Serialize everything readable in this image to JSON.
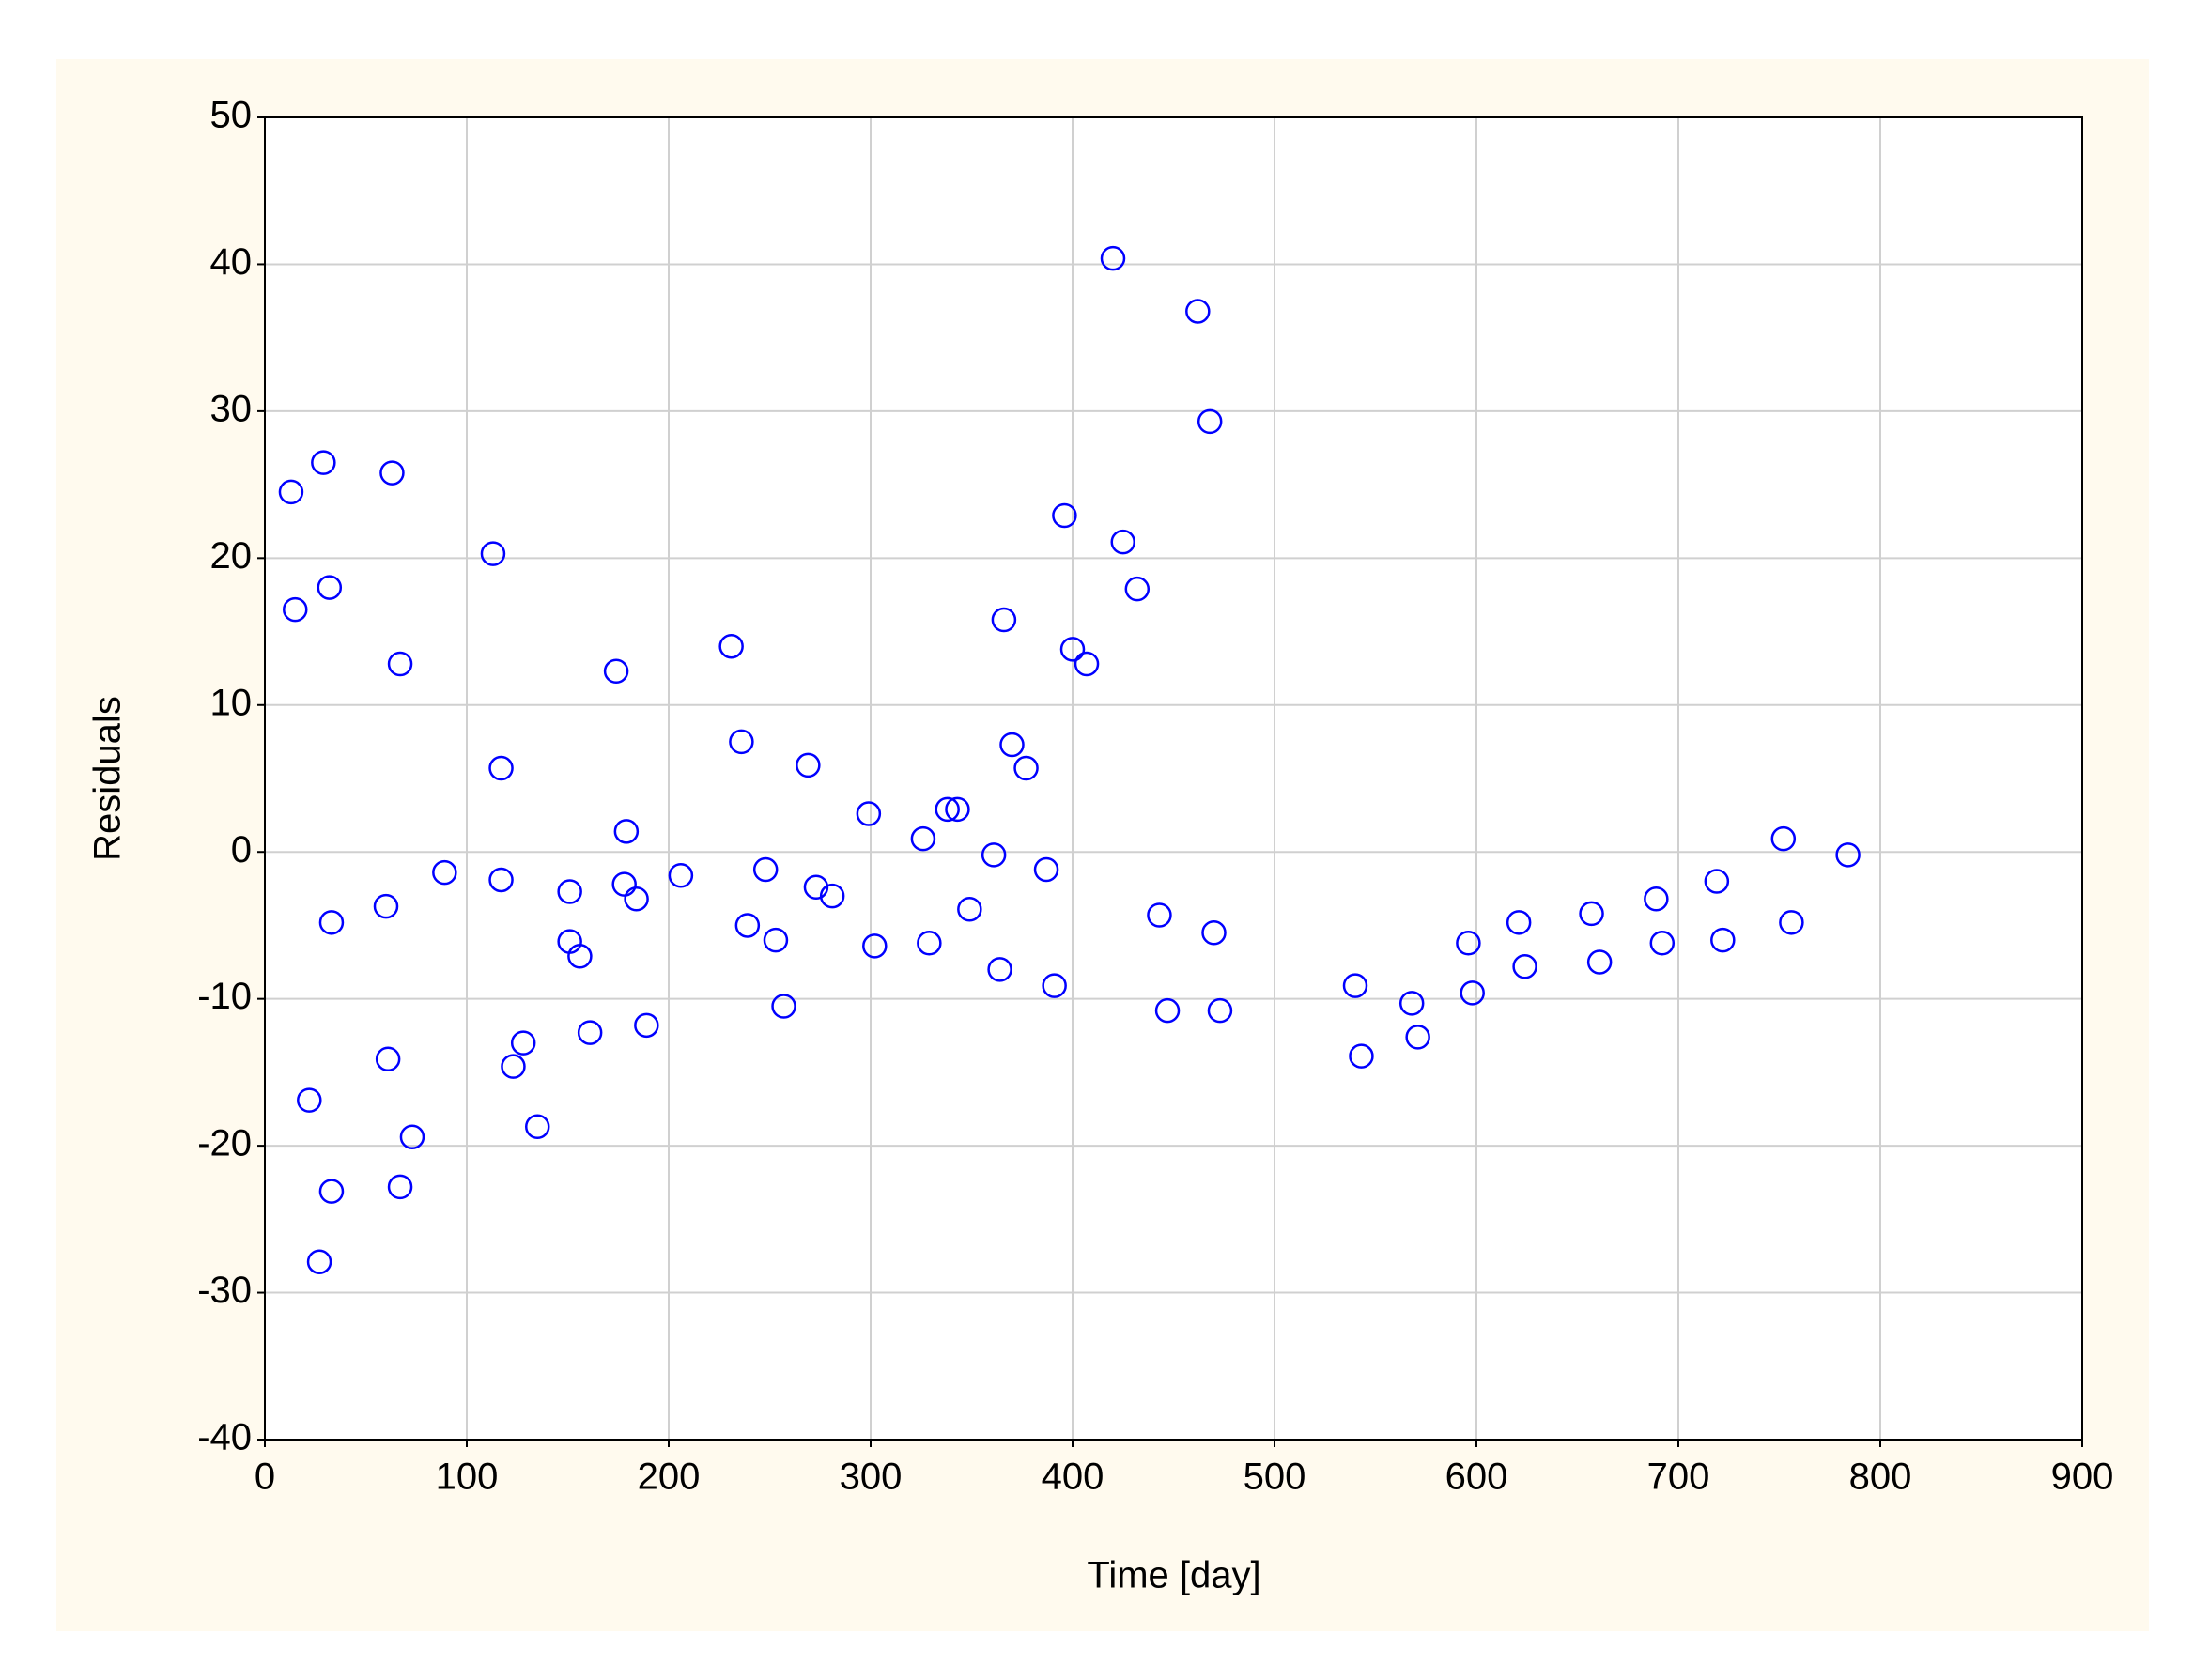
{
  "chart_data": {
    "type": "scatter",
    "xlabel": "Time [day]",
    "ylabel": "Residuals",
    "color": "#0000ff",
    "grid": true,
    "xlim": [
      0,
      900
    ],
    "xticks": [
      0,
      100,
      200,
      300,
      400,
      500,
      600,
      700,
      800,
      900
    ],
    "ylim": [
      -40,
      50
    ],
    "yticks": [
      -40,
      -30,
      -20,
      -10,
      0,
      10,
      20,
      30,
      40,
      50
    ],
    "x": [
      13,
      15,
      29,
      32,
      33,
      22,
      33,
      27,
      63,
      67,
      60,
      61,
      73,
      67,
      89,
      113,
      117,
      117,
      123,
      128,
      135,
      151,
      151,
      156,
      161,
      174,
      179,
      178,
      184,
      189,
      206,
      231,
      236,
      239,
      248,
      253,
      257,
      269,
      273,
      281,
      299,
      302,
      326,
      329,
      338,
      343,
      349,
      361,
      364,
      366,
      370,
      377,
      387,
      391,
      396,
      400,
      407,
      420,
      425,
      432,
      443,
      447,
      462,
      468,
      470,
      473,
      540,
      543,
      568,
      571,
      596,
      598,
      621,
      624,
      657,
      661,
      689,
      692,
      719,
      722,
      752,
      756,
      784
    ],
    "values": [
      24.5,
      16.5,
      26.5,
      18,
      -4.8,
      -16.9,
      -23.1,
      -27.9,
      25.8,
      12.8,
      -3.7,
      -14.1,
      -19.4,
      -22.8,
      -1.4,
      20.3,
      5.7,
      -1.9,
      -14.6,
      -13,
      -18.7,
      -2.7,
      -6.1,
      -7.1,
      -12.3,
      12.3,
      1.4,
      -2.2,
      -3.2,
      -11.8,
      -1.6,
      14,
      7.5,
      -5,
      -1.2,
      -6,
      -10.5,
      5.9,
      -2.4,
      -3,
      2.6,
      -6.4,
      0.9,
      -6.2,
      2.9,
      2.9,
      -3.9,
      -0.2,
      -8,
      15.8,
      7.3,
      5.7,
      -1.2,
      -9.1,
      22.9,
      13.8,
      12.8,
      40.4,
      21.1,
      17.9,
      -4.3,
      -10.8,
      36.8,
      29.3,
      -5.5,
      -10.8,
      -9.1,
      -13.9,
      -10.3,
      -12.6,
      -6.2,
      -9.6,
      -4.8,
      -7.8,
      -4.2,
      -7.5,
      -3.2,
      -6.2,
      -2,
      -6,
      0.9,
      -4.8,
      -0.2
    ]
  }
}
